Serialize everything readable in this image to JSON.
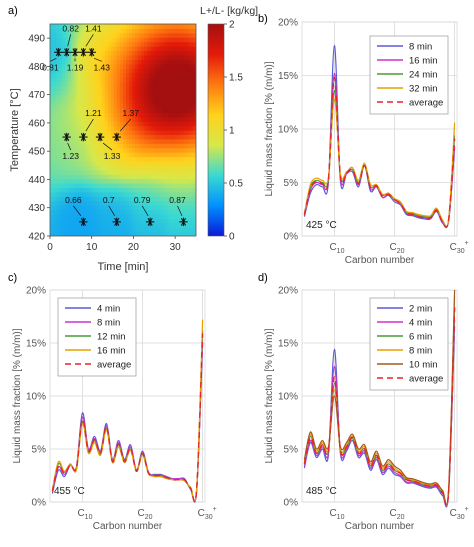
{
  "panels": {
    "a": {
      "letter": "a)"
    },
    "b": {
      "letter": "b)"
    },
    "c": {
      "letter": "c)"
    },
    "d": {
      "letter": "d)"
    }
  },
  "chart_data": [
    {
      "id": "a",
      "type": "heatmap",
      "title": "",
      "xlabel": "Time [min]",
      "ylabel": "Temperature [°C]",
      "xlim": [
        0,
        35
      ],
      "ylim": [
        420,
        495
      ],
      "xticks": [
        "0",
        "10",
        "20",
        "30"
      ],
      "yticks": [
        "420",
        "430",
        "440",
        "450",
        "460",
        "470",
        "480",
        "490"
      ],
      "colorbar": {
        "label": "L+/L- [kg/kg]",
        "range": [
          0,
          2
        ],
        "ticks": [
          "0",
          "0.5",
          "1",
          "1.5",
          "2"
        ],
        "colors": [
          "#0a1ad8",
          "#0090ff",
          "#3ad9d2",
          "#d7e84a",
          "#ffd21c",
          "#ff7a10",
          "#e41a0a",
          "#a40f0f"
        ]
      },
      "points": [
        {
          "x": 2,
          "y": 485,
          "label": "0.81"
        },
        {
          "x": 4,
          "y": 485,
          "label": "0.82"
        },
        {
          "x": 6,
          "y": 485,
          "label": "1.19"
        },
        {
          "x": 8,
          "y": 485,
          "label": "1.41"
        },
        {
          "x": 10,
          "y": 485,
          "label": "1.43"
        },
        {
          "x": 4,
          "y": 455,
          "label": "1.23"
        },
        {
          "x": 8,
          "y": 455,
          "label": "1.21"
        },
        {
          "x": 12,
          "y": 455,
          "label": "1.33"
        },
        {
          "x": 16,
          "y": 455,
          "label": "1.37"
        },
        {
          "x": 8,
          "y": 425,
          "label": "0.66"
        },
        {
          "x": 16,
          "y": 425,
          "label": "0.7"
        },
        {
          "x": 24,
          "y": 425,
          "label": "0.79"
        },
        {
          "x": 32,
          "y": 425,
          "label": "0.87"
        }
      ]
    },
    {
      "id": "b",
      "type": "line",
      "temperature_label": "425 °C",
      "xlabel": "Carbon number",
      "ylabel": "Liquid mass fraction [% (m/m)]",
      "ylim": [
        0,
        20
      ],
      "yticks": [
        "0%",
        "5%",
        "10%",
        "15%",
        "20%"
      ],
      "xticks": [
        {
          "x": 10,
          "label": "C",
          "sub": "10"
        },
        {
          "x": 20,
          "label": "C",
          "sub": "20"
        },
        {
          "x": 30,
          "label": "C",
          "sub": "30",
          "sup": "+"
        }
      ],
      "x": [
        5,
        6,
        7,
        8,
        9,
        10,
        11,
        12,
        13,
        14,
        15,
        16,
        17,
        18,
        19,
        20,
        21,
        22,
        23,
        24,
        25,
        26,
        27,
        28,
        29,
        30
      ],
      "series": [
        {
          "name": "8 min",
          "color": "#5b5bd6",
          "dash": false,
          "values": [
            1.8,
            4.0,
            4.8,
            4.6,
            5.0,
            17.8,
            5.2,
            5.8,
            6.0,
            4.6,
            6.6,
            4.2,
            4.6,
            3.6,
            3.8,
            3.2,
            2.9,
            2.0,
            1.9,
            1.7,
            1.6,
            1.6,
            2.3,
            1.2,
            1.4,
            8.2
          ]
        },
        {
          "name": "16 min",
          "color": "#cc33cc",
          "dash": false,
          "values": [
            1.9,
            4.3,
            5.0,
            4.8,
            5.2,
            15.2,
            5.4,
            5.8,
            6.2,
            4.8,
            6.6,
            4.4,
            4.6,
            3.6,
            3.9,
            3.4,
            3.0,
            2.1,
            2.0,
            1.8,
            1.7,
            1.7,
            2.4,
            1.3,
            1.4,
            8.4
          ]
        },
        {
          "name": "24 min",
          "color": "#4a9a3a",
          "dash": false,
          "values": [
            2.0,
            4.6,
            5.2,
            5.0,
            5.3,
            13.6,
            5.6,
            5.9,
            6.2,
            5.0,
            6.6,
            4.6,
            4.7,
            3.8,
            4.0,
            3.4,
            3.1,
            2.2,
            2.1,
            1.9,
            1.8,
            1.8,
            2.5,
            1.4,
            1.5,
            9.4
          ]
        },
        {
          "name": "32 min",
          "color": "#e8a000",
          "dash": false,
          "values": [
            2.1,
            4.8,
            5.4,
            5.2,
            5.5,
            12.8,
            5.8,
            6.0,
            6.4,
            5.2,
            6.8,
            4.8,
            4.8,
            3.9,
            4.0,
            3.5,
            3.2,
            2.3,
            2.2,
            2.0,
            1.9,
            1.9,
            2.6,
            1.5,
            1.6,
            10.6
          ]
        },
        {
          "name": "average",
          "color": "#e8232a",
          "dash": true,
          "values": [
            2.0,
            4.4,
            5.1,
            4.9,
            5.2,
            14.8,
            5.5,
            5.9,
            6.2,
            4.9,
            6.6,
            4.5,
            4.7,
            3.7,
            3.9,
            3.4,
            3.0,
            2.2,
            2.0,
            1.8,
            1.7,
            1.7,
            2.4,
            1.3,
            1.5,
            9.1
          ]
        }
      ]
    },
    {
      "id": "c",
      "type": "line",
      "temperature_label": "455 °C",
      "xlabel": "Carbon number",
      "ylabel": "Liquid mass fraction [% (m/m)]",
      "ylim": [
        0,
        20
      ],
      "yticks": [
        "0%",
        "5%",
        "10%",
        "15%",
        "20%"
      ],
      "xticks": [
        {
          "x": 10,
          "label": "C",
          "sub": "10"
        },
        {
          "x": 20,
          "label": "C",
          "sub": "20"
        },
        {
          "x": 30,
          "label": "C",
          "sub": "30",
          "sup": "+"
        }
      ],
      "x": [
        5,
        6,
        7,
        8,
        9,
        10,
        11,
        12,
        13,
        14,
        15,
        16,
        17,
        18,
        19,
        20,
        21,
        22,
        23,
        24,
        25,
        26,
        27,
        28,
        29,
        30
      ],
      "series": [
        {
          "name": "4 min",
          "color": "#5b5bd6",
          "dash": false,
          "values": [
            0.8,
            3.0,
            2.4,
            3.5,
            3.3,
            8.4,
            5.0,
            6.2,
            4.8,
            7.4,
            4.0,
            5.8,
            4.0,
            5.4,
            3.0,
            4.8,
            2.8,
            2.6,
            2.6,
            2.4,
            2.2,
            2.2,
            2.2,
            1.2,
            1.0,
            15.0
          ]
        },
        {
          "name": "8 min",
          "color": "#cc33cc",
          "dash": false,
          "values": [
            1.0,
            3.3,
            2.6,
            3.5,
            3.2,
            8.0,
            4.9,
            6.0,
            4.6,
            7.2,
            3.9,
            5.6,
            3.9,
            5.2,
            3.0,
            4.6,
            2.8,
            2.5,
            2.5,
            2.3,
            2.2,
            2.2,
            2.1,
            1.3,
            1.1,
            15.4
          ]
        },
        {
          "name": "12 min",
          "color": "#4a9a3a",
          "dash": false,
          "values": [
            1.1,
            3.6,
            2.8,
            3.5,
            3.1,
            7.6,
            4.7,
            5.8,
            4.5,
            7.0,
            3.8,
            5.4,
            3.8,
            5.0,
            2.9,
            4.5,
            2.7,
            2.5,
            2.4,
            2.3,
            2.1,
            2.1,
            2.0,
            1.3,
            1.1,
            16.2
          ]
        },
        {
          "name": "16 min",
          "color": "#e8a000",
          "dash": false,
          "values": [
            1.2,
            3.8,
            2.9,
            3.6,
            3.0,
            7.4,
            4.6,
            5.6,
            4.4,
            6.8,
            3.7,
            5.2,
            3.7,
            4.9,
            2.9,
            4.4,
            2.7,
            2.4,
            2.4,
            2.2,
            2.1,
            2.1,
            2.0,
            1.4,
            1.2,
            17.2
          ]
        },
        {
          "name": "average",
          "color": "#e8232a",
          "dash": true,
          "values": [
            1.0,
            3.4,
            2.7,
            3.5,
            3.2,
            7.8,
            4.8,
            5.9,
            4.6,
            7.1,
            3.8,
            5.5,
            3.8,
            5.1,
            2.9,
            4.6,
            2.7,
            2.5,
            2.5,
            2.3,
            2.1,
            2.1,
            2.1,
            1.3,
            1.1,
            15.9
          ]
        }
      ]
    },
    {
      "id": "d",
      "type": "line",
      "temperature_label": "485 °C",
      "xlabel": "Carbon number",
      "ylabel": "Liquid mass fraction [% (m/m)]",
      "ylim": [
        0,
        20
      ],
      "yticks": [
        "0%",
        "5%",
        "10%",
        "15%",
        "20%"
      ],
      "xticks": [
        {
          "x": 10,
          "label": "C",
          "sub": "10"
        },
        {
          "x": 20,
          "label": "C",
          "sub": "20"
        },
        {
          "x": 30,
          "label": "C",
          "sub": "30",
          "sup": "+"
        }
      ],
      "x": [
        5,
        6,
        7,
        8,
        9,
        10,
        11,
        12,
        13,
        14,
        15,
        16,
        17,
        18,
        19,
        20,
        21,
        22,
        23,
        24,
        25,
        26,
        27,
        28,
        29,
        30
      ],
      "series": [
        {
          "name": "2 min",
          "color": "#5b5bd6",
          "dash": false,
          "values": [
            3.2,
            5.6,
            4.2,
            5.0,
            4.4,
            14.4,
            4.6,
            4.8,
            5.8,
            4.2,
            4.6,
            3.0,
            4.0,
            2.6,
            3.2,
            2.6,
            2.4,
            1.8,
            1.8,
            1.6,
            1.4,
            1.3,
            1.4,
            0.6,
            0.8,
            16.6
          ]
        },
        {
          "name": "4 min",
          "color": "#cc33cc",
          "dash": false,
          "values": [
            3.4,
            5.8,
            4.4,
            5.2,
            4.6,
            12.8,
            4.7,
            5.0,
            6.0,
            4.4,
            4.8,
            3.2,
            4.2,
            2.8,
            3.4,
            2.8,
            2.5,
            1.9,
            1.9,
            1.7,
            1.5,
            1.4,
            1.5,
            0.8,
            0.9,
            17.2
          ]
        },
        {
          "name": "6 min",
          "color": "#4a9a3a",
          "dash": false,
          "values": [
            3.6,
            6.2,
            4.6,
            5.4,
            4.8,
            11.2,
            4.8,
            5.2,
            6.0,
            4.6,
            5.0,
            3.4,
            4.4,
            3.0,
            3.6,
            3.0,
            2.7,
            2.1,
            2.0,
            1.8,
            1.6,
            1.5,
            1.6,
            0.9,
            1.0,
            18.4
          ]
        },
        {
          "name": "8 min",
          "color": "#e8a000",
          "dash": false,
          "values": [
            3.8,
            6.4,
            4.8,
            5.6,
            5.0,
            10.6,
            5.0,
            5.4,
            6.2,
            4.8,
            5.2,
            3.6,
            4.6,
            3.2,
            3.8,
            3.2,
            2.8,
            2.2,
            2.1,
            1.9,
            1.7,
            1.6,
            1.7,
            1.0,
            1.1,
            19.4
          ]
        },
        {
          "name": "10 min",
          "color": "#a05a1e",
          "dash": false,
          "values": [
            4.0,
            6.6,
            5.0,
            5.8,
            5.2,
            10.0,
            5.2,
            5.6,
            6.4,
            5.0,
            5.4,
            3.8,
            4.8,
            3.4,
            4.0,
            3.4,
            3.0,
            2.3,
            2.2,
            2.0,
            1.8,
            1.7,
            1.8,
            1.1,
            1.2,
            20.0
          ]
        },
        {
          "name": "average",
          "color": "#e8232a",
          "dash": true,
          "values": [
            3.6,
            6.1,
            4.6,
            5.4,
            4.8,
            11.8,
            4.9,
            5.2,
            6.1,
            4.6,
            5.0,
            3.4,
            4.4,
            3.0,
            3.6,
            3.0,
            2.7,
            2.1,
            2.0,
            1.8,
            1.6,
            1.5,
            1.6,
            0.9,
            1.0,
            18.3
          ]
        }
      ]
    }
  ]
}
